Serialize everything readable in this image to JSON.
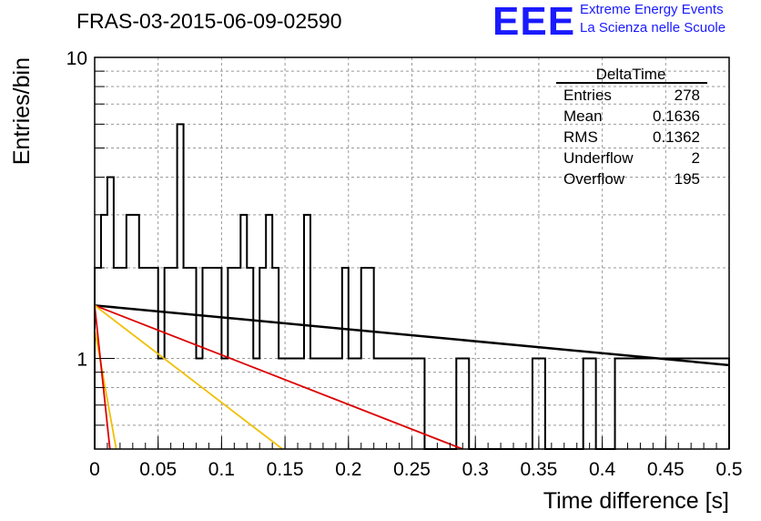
{
  "header": {
    "title": "FRAS-03-2015-06-09-02590",
    "logo": "EEE",
    "subtitle_line1": "Extreme Energy Events",
    "subtitle_line2": "La Scienza nelle Scuole"
  },
  "stats": {
    "title": "DeltaTime",
    "rows": [
      {
        "label": "Entries",
        "value": "278"
      },
      {
        "label": "Mean",
        "value": "0.1636"
      },
      {
        "label": "RMS",
        "value": "0.1362"
      },
      {
        "label": "Underflow",
        "value": "2"
      },
      {
        "label": "Overflow",
        "value": "195"
      }
    ]
  },
  "chart_data": {
    "type": "histogram",
    "xlabel": "Time difference [s]",
    "ylabel": "Entries/bin",
    "xlim": [
      0,
      0.5
    ],
    "ylim": [
      0.5,
      10
    ],
    "yscale": "log",
    "grid": true,
    "x_ticks": [
      "0",
      "0.05",
      "0.1",
      "0.15",
      "0.2",
      "0.25",
      "0.3",
      "0.35",
      "0.4",
      "0.45",
      "0.5"
    ],
    "y_ticks": [
      "1",
      "10"
    ],
    "bin_width": 0.005,
    "bin_counts": [
      2,
      3,
      4,
      2,
      2,
      3,
      3,
      2,
      2,
      2,
      1,
      2,
      2,
      6,
      2,
      2,
      1,
      2,
      2,
      2,
      1,
      2,
      2,
      3,
      2,
      1,
      2,
      3,
      2,
      1,
      1,
      1,
      1,
      3,
      1,
      1,
      1,
      1,
      1,
      2,
      1,
      1,
      2,
      2,
      1,
      1,
      1,
      1,
      1,
      1,
      1,
      1,
      0,
      0,
      0,
      0,
      0,
      1,
      1,
      0,
      0,
      0,
      0,
      0,
      0,
      0,
      0,
      0,
      0,
      1,
      1,
      0,
      0,
      0,
      0,
      0,
      0,
      1,
      1,
      0,
      0,
      0,
      1,
      1,
      1,
      1,
      1,
      1,
      1,
      1,
      1,
      1,
      1,
      1,
      1,
      1,
      1,
      1,
      1,
      1
    ],
    "bin_counts_note": "",
    "fits": [
      {
        "color": "#000000",
        "x": [
          0,
          0.5
        ],
        "y": [
          1.5,
          0.95
        ]
      },
      {
        "color": "#dd0000",
        "x": [
          0,
          0.29
        ],
        "y": [
          1.5,
          0.5
        ]
      },
      {
        "color": "#f0c000",
        "x": [
          0,
          0.148
        ],
        "y": [
          1.5,
          0.5
        ]
      },
      {
        "color": "#f0c000",
        "x": [
          0,
          0.017
        ],
        "y": [
          1.25,
          0.5
        ]
      },
      {
        "color": "#dd0000",
        "x": [
          0,
          0.012
        ],
        "y": [
          1.5,
          0.5
        ]
      }
    ]
  }
}
